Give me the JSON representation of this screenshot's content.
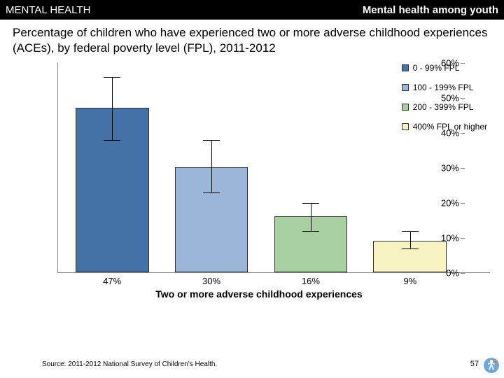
{
  "header": {
    "left": "MENTAL HEALTH",
    "right": "Mental health among youth"
  },
  "subtitle": "Percentage of children who have experienced two or more adverse childhood experiences (ACEs), by federal poverty level (FPL), 2011-2012",
  "chart": {
    "type": "bar",
    "ylim": [
      0,
      60
    ],
    "ytick_step": 10,
    "ytick_suffix": "%",
    "x_title": "Two or more adverse childhood experiences",
    "bar_width_pct": 17,
    "bar_gap_pct": 6,
    "bars": [
      {
        "label": "47%",
        "value": 47,
        "err_low": 38,
        "err_high": 56,
        "color": "#4472a8"
      },
      {
        "label": "30%",
        "value": 30,
        "err_low": 23,
        "err_high": 38,
        "color": "#9bb6d9"
      },
      {
        "label": "16%",
        "value": 16,
        "err_low": 12,
        "err_high": 20,
        "color": "#a7cf9f"
      },
      {
        "label": "9%",
        "value": 9,
        "err_low": 7,
        "err_high": 12,
        "color": "#f7f3c3"
      }
    ],
    "legend": [
      {
        "label": "0 - 99% FPL",
        "color": "#4472a8"
      },
      {
        "label": "100 - 199% FPL",
        "color": "#9bb6d9"
      },
      {
        "label": "200 - 399% FPL",
        "color": "#a7cf9f"
      },
      {
        "label": "400% FPL or higher",
        "color": "#f7f3c3"
      }
    ]
  },
  "source": "Source: 2011-2012 National Survey of Children's Health.",
  "page_number": "57"
}
